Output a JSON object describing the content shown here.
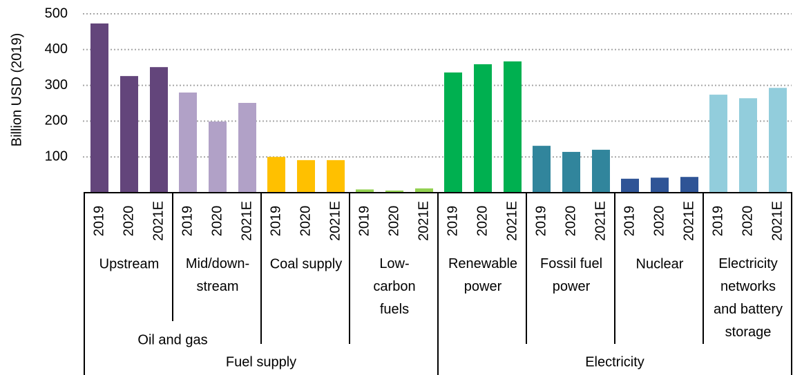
{
  "chart_data": {
    "type": "bar",
    "y_label": "Billion USD (2019)",
    "ylim": [
      0,
      500
    ],
    "yticks": [
      100,
      200,
      300,
      400,
      500
    ],
    "grid": true,
    "categories": [
      "2019",
      "2020",
      "2021E"
    ],
    "sectors": [
      {
        "name": "Fuel supply",
        "children": [
          {
            "name": "Oil and gas",
            "children": [
              {
                "name": "Upstream",
                "color": "#63457b",
                "values": [
                  473,
                  326,
                  351
                ]
              },
              {
                "name": "Mid/down-\nstream",
                "color": "#b1a1c7",
                "values": [
                  280,
                  199,
                  251
                ]
              }
            ]
          },
          {
            "name": "Coal supply",
            "color": "#ffc000",
            "values": [
              100,
              91,
              91
            ]
          },
          {
            "name": "Low-\ncarbon\nfuels",
            "color": "#92d050",
            "values": [
              9,
              6,
              12
            ]
          }
        ]
      },
      {
        "name": "Electricity",
        "children": [
          {
            "name": "Renewable\npower",
            "color": "#00b050",
            "values": [
              336,
              359,
              367
            ]
          },
          {
            "name": "Fossil fuel\npower",
            "color": "#31859c",
            "values": [
              131,
              114,
              120
            ]
          },
          {
            "name": "Nuclear",
            "color": "#2f5496",
            "values": [
              39,
              42,
              44
            ]
          },
          {
            "name": "Electricity\nnetworks\nand battery\nstorage",
            "color": "#92cddc",
            "values": [
              274,
              264,
              293
            ]
          }
        ]
      }
    ]
  }
}
